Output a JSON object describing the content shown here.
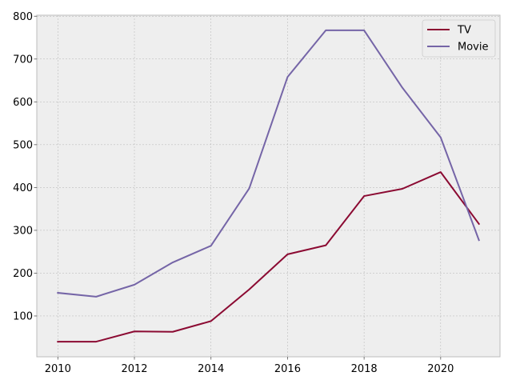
{
  "chart_data": {
    "type": "line",
    "title": "",
    "xlabel": "",
    "ylabel": "",
    "x": [
      2010,
      2011,
      2012,
      2013,
      2014,
      2015,
      2016,
      2017,
      2018,
      2019,
      2020,
      2021
    ],
    "series": [
      {
        "name": "TV",
        "color": "#8b0a32",
        "values": [
          40,
          40,
          64,
          63,
          88,
          162,
          244,
          265,
          380,
          397,
          436,
          315
        ]
      },
      {
        "name": "Movie",
        "color": "#7565a7",
        "values": [
          154,
          145,
          173,
          225,
          264,
          398,
          658,
          767,
          767,
          633,
          517,
          277
        ]
      }
    ],
    "xlim": [
      2009.45,
      2021.55
    ],
    "ylim": [
      4.65,
      802.35
    ],
    "xticks": [
      "2010",
      "2012",
      "2014",
      "2016",
      "2018",
      "2020"
    ],
    "yticks": [
      "100",
      "200",
      "300",
      "400",
      "500",
      "600",
      "700",
      "800"
    ],
    "grid": true,
    "legend": {
      "position": "top-right",
      "entries": [
        "TV",
        "Movie"
      ]
    },
    "background_color": "#eeeeee"
  }
}
